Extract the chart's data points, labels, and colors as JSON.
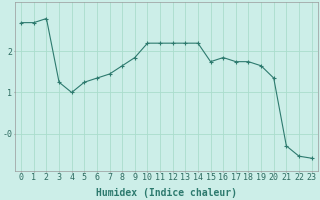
{
  "x": [
    0,
    1,
    2,
    3,
    4,
    5,
    6,
    7,
    8,
    9,
    10,
    11,
    12,
    13,
    14,
    15,
    16,
    17,
    18,
    19,
    20,
    21,
    22,
    23
  ],
  "y": [
    2.7,
    2.7,
    2.8,
    1.25,
    1.0,
    1.25,
    1.35,
    1.45,
    1.65,
    1.85,
    2.2,
    2.2,
    2.2,
    2.2,
    2.2,
    1.75,
    1.85,
    1.75,
    1.75,
    1.65,
    1.35,
    -0.3,
    -0.55,
    -0.6
  ],
  "line_color": "#2d7a6e",
  "marker": "+",
  "marker_size": 3,
  "background_color": "#cceee8",
  "grid_color": "#aaddcc",
  "xlabel": "Humidex (Indice chaleur)",
  "xlabel_fontsize": 7,
  "tick_fontsize": 6,
  "ylim": [
    -0.9,
    3.2
  ],
  "xlim": [
    -0.5,
    23.5
  ],
  "yticks": [
    0,
    1,
    2
  ],
  "ytick_labels": [
    "-0",
    "1",
    "2"
  ],
  "xticks": [
    0,
    1,
    2,
    3,
    4,
    5,
    6,
    7,
    8,
    9,
    10,
    11,
    12,
    13,
    14,
    15,
    16,
    17,
    18,
    19,
    20,
    21,
    22,
    23
  ]
}
